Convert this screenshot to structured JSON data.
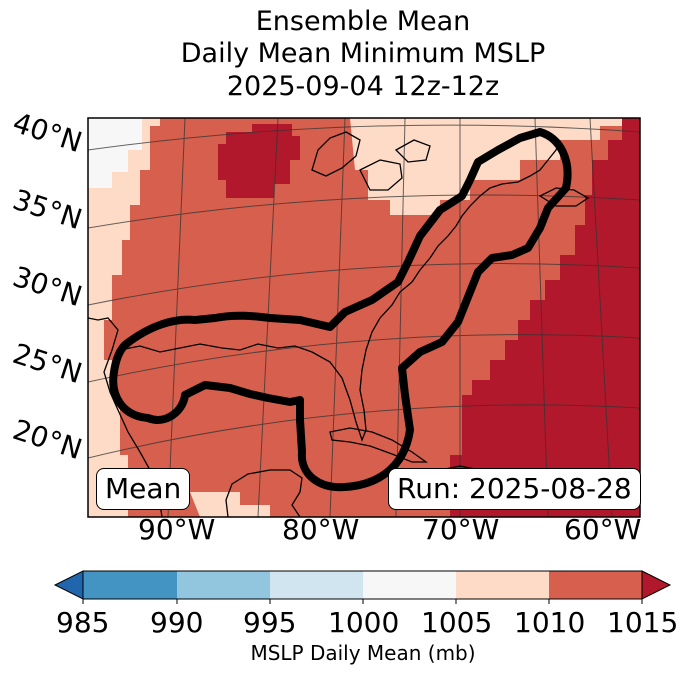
{
  "title": {
    "line1": "Ensemble Mean",
    "line2": "Daily Mean Minimum MSLP",
    "line3": "2025-09-04 12z-12z"
  },
  "map": {
    "lat_labels": [
      "40°N",
      "35°N",
      "30°N",
      "25°N",
      "20°N"
    ],
    "lon_labels": [
      "90°W",
      "80°W",
      "70°W",
      "60°W"
    ],
    "mean_badge": "Mean",
    "run_badge": "Run: 2025-08-28"
  },
  "colorbar": {
    "title": "MSLP Daily Mean (mb)",
    "ticks": [
      "985",
      "990",
      "995",
      "1000",
      "1005",
      "1010",
      "1015"
    ],
    "colors": {
      "under": "#2166ac",
      "985-990": "#4393c3",
      "990-995": "#92c5de",
      "995-1000": "#d1e5f0",
      "1000-1005": "#f7f7f7",
      "1005-1010": "#fddbc7",
      "1010-1015": "#d6604d",
      "over": "#b2182b"
    }
  },
  "colors": {
    "low_1000_1005": "#f7f7f7",
    "mid_1005_1010": "#fddbc7",
    "high_1010_1015": "#d6604d",
    "top_over_1015": "#b2182b",
    "contour": "#000000",
    "coastline": "#000000",
    "gridline": "#333333"
  }
}
